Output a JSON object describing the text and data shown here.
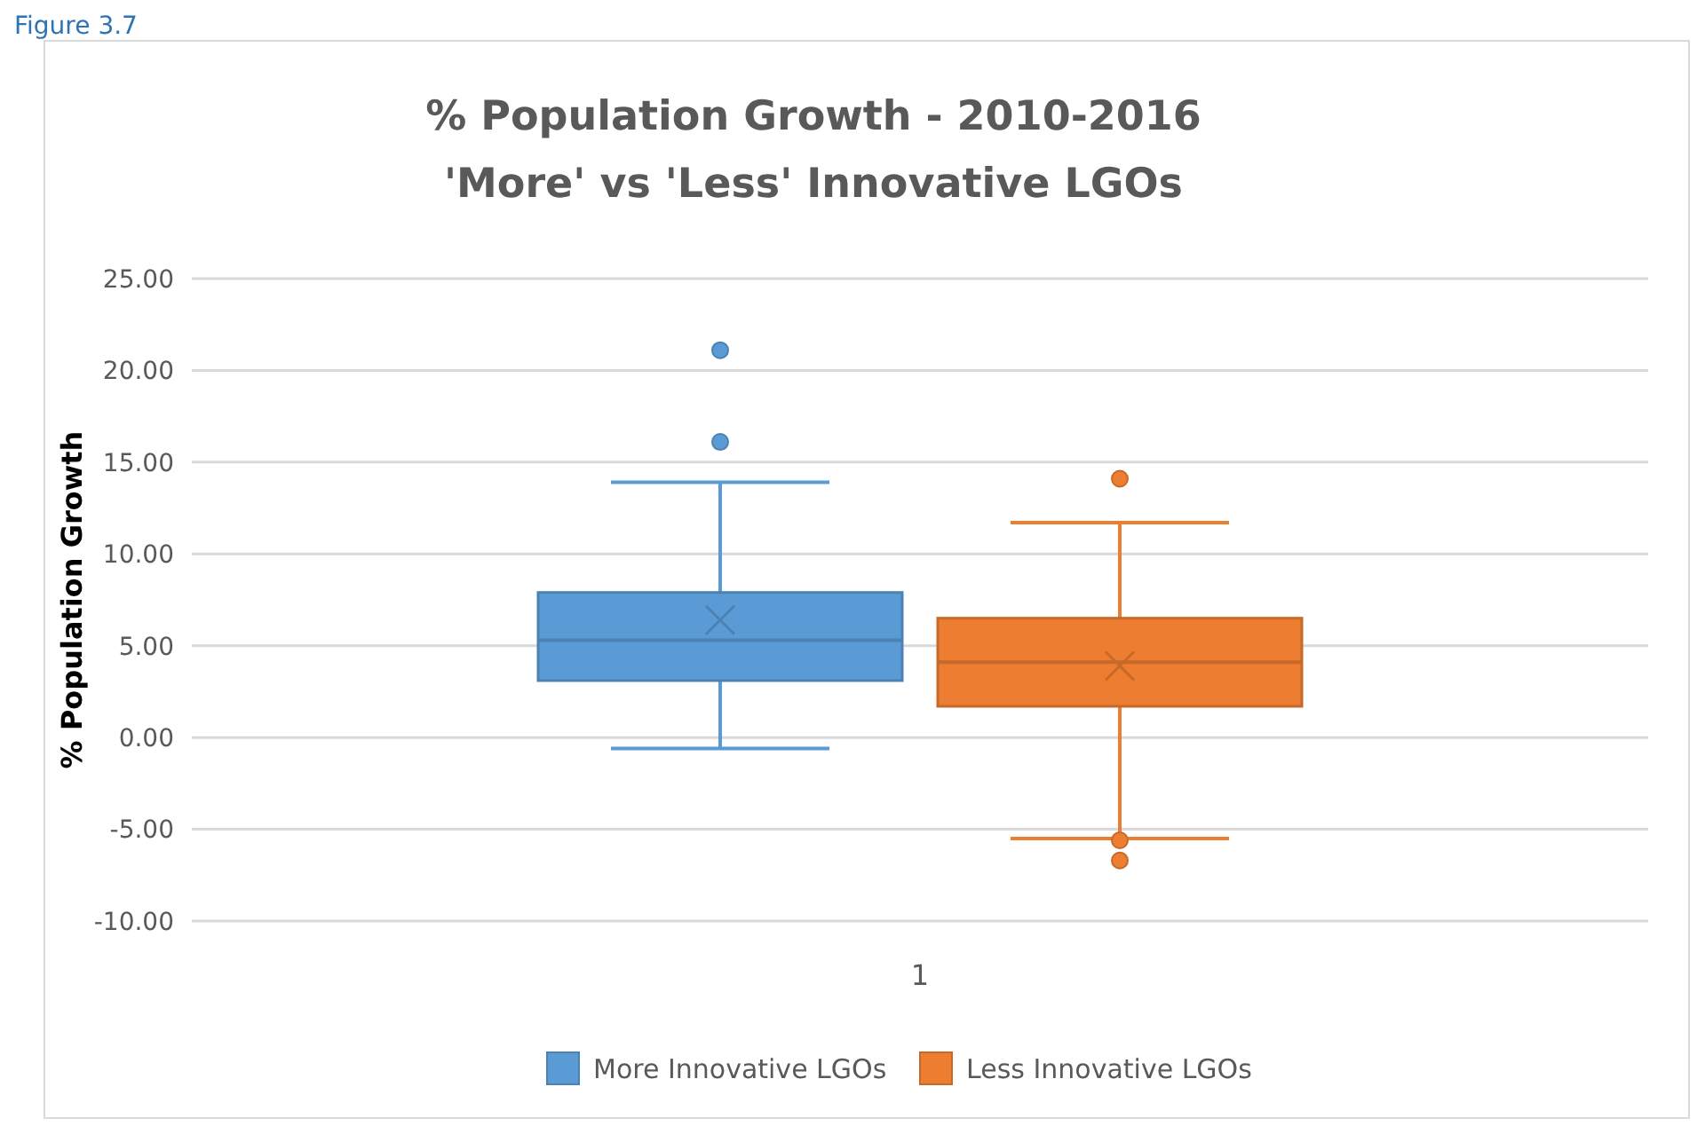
{
  "chart_data": {
    "type": "box",
    "title": "% Population Growth - 2010-2016\n'More' vs 'Less' Innovative LGOs",
    "ylabel": "% Population Growth",
    "annotations": [
      "Figure 3.7"
    ],
    "categories": [
      "1"
    ],
    "ylim": [
      -10,
      25
    ],
    "yticks": [
      {
        "value": -10,
        "label": "-10.00"
      },
      {
        "value": -5,
        "label": "-5.00"
      },
      {
        "value": 0,
        "label": "0.00"
      },
      {
        "value": 5,
        "label": "5.00"
      },
      {
        "value": 10,
        "label": "10.00"
      },
      {
        "value": 15,
        "label": "15.00"
      },
      {
        "value": 20,
        "label": "20.00"
      },
      {
        "value": 25,
        "label": "25.00"
      }
    ],
    "grid": "y",
    "legend": "bottom",
    "series": [
      {
        "name": "More Innovative LGOs",
        "color": "#5b9bd5",
        "boxes": [
          {
            "low": -0.6,
            "q1": 3.1,
            "median": 5.3,
            "q3": 7.9,
            "high": 13.9,
            "mean": 6.4,
            "outliers": [
              16.1,
              21.1
            ]
          }
        ]
      },
      {
        "name": "Less Innovative LGOs",
        "color": "#ed7d31",
        "boxes": [
          {
            "low": -5.5,
            "q1": 1.7,
            "median": 4.1,
            "q3": 6.5,
            "high": 11.7,
            "mean": 3.9,
            "outliers": [
              14.1,
              -5.6,
              -6.7
            ]
          }
        ]
      }
    ]
  }
}
